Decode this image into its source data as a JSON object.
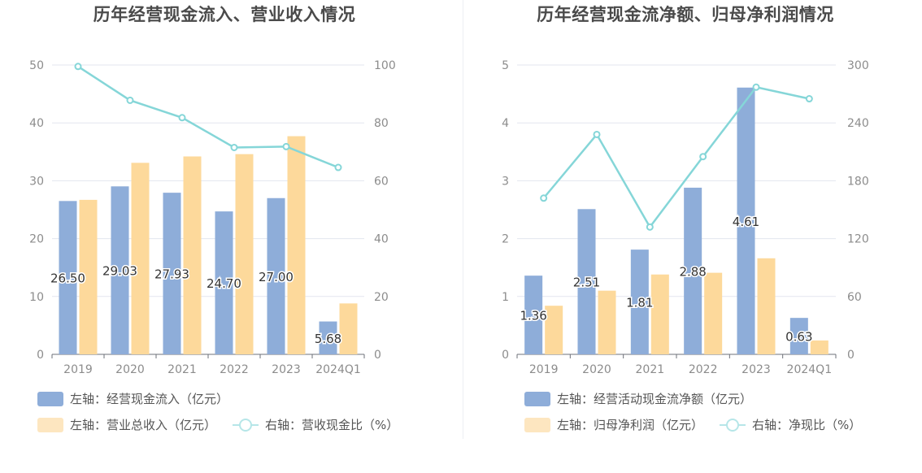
{
  "colors": {
    "bar1": "#8eadd9",
    "bar2": "#fdd99b",
    "line": "#85d6d8",
    "grid": "#e3e6ef",
    "axisText": "#8c8c8c",
    "labelText": "#333333"
  },
  "charts": [
    {
      "title": "历年经营现金流入、营业收入情况",
      "legend": {
        "bar1": "左轴：经营现金流入（亿元）",
        "bar2": "左轴：营业总收入（亿元）",
        "line": "右轴：营收现金比（%）"
      }
    },
    {
      "title": "历年经营现金流净额、归母净利润情况",
      "legend": {
        "bar1": "左轴：经营活动现金流净额（亿元）",
        "bar2": "左轴：归母净利润（亿元）",
        "line": "右轴：净现比（%）"
      }
    }
  ],
  "chart_data": [
    {
      "type": "bar",
      "title": "历年经营现金流入、营业收入情况",
      "categories": [
        "2019",
        "2020",
        "2021",
        "2022",
        "2023",
        "2024Q1"
      ],
      "left_axis": {
        "min": 0,
        "max": 50,
        "ticks": [
          0,
          10,
          20,
          30,
          40,
          50
        ]
      },
      "right_axis": {
        "min": 0,
        "max": 100,
        "ticks": [
          0,
          20,
          40,
          60,
          80,
          100
        ]
      },
      "grid": true,
      "legend_position": "bottom",
      "series": [
        {
          "name": "左轴：经营现金流入（亿元）",
          "axis": "left",
          "kind": "bar",
          "values": [
            26.5,
            29.03,
            27.93,
            24.7,
            27.0,
            5.68
          ],
          "data_labels": [
            "26.50",
            "29.03",
            "27.93",
            "24.70",
            "27.00",
            "5.68"
          ]
        },
        {
          "name": "左轴：营业总收入（亿元）",
          "axis": "left",
          "kind": "bar",
          "values": [
            26.7,
            33.1,
            34.2,
            34.6,
            37.7,
            8.8
          ]
        },
        {
          "name": "右轴：营收现金比（%）",
          "axis": "right",
          "kind": "line",
          "values": [
            99.5,
            87.8,
            81.8,
            71.5,
            71.8,
            64.6
          ]
        }
      ]
    },
    {
      "type": "bar",
      "title": "历年经营现金流净额、归母净利润情况",
      "categories": [
        "2019",
        "2020",
        "2021",
        "2022",
        "2023",
        "2024Q1"
      ],
      "left_axis": {
        "min": 0,
        "max": 5,
        "ticks": [
          0,
          1,
          2,
          3,
          4,
          5
        ]
      },
      "right_axis": {
        "min": 0,
        "max": 300,
        "ticks": [
          0,
          60,
          120,
          180,
          240,
          300
        ]
      },
      "grid": true,
      "legend_position": "bottom",
      "series": [
        {
          "name": "左轴：经营活动现金流净额（亿元）",
          "axis": "left",
          "kind": "bar",
          "values": [
            1.36,
            2.51,
            1.81,
            2.88,
            4.61,
            0.63
          ],
          "data_labels": [
            "1.36",
            "2.51",
            "1.81",
            "2.88",
            "4.61",
            "0.63"
          ]
        },
        {
          "name": "左轴：归母净利润（亿元）",
          "axis": "left",
          "kind": "bar",
          "values": [
            0.84,
            1.1,
            1.38,
            1.41,
            1.66,
            0.24
          ]
        },
        {
          "name": "右轴：净现比（%）",
          "axis": "right",
          "kind": "line",
          "values": [
            162,
            228,
            132,
            205,
            277,
            265
          ]
        }
      ]
    }
  ]
}
